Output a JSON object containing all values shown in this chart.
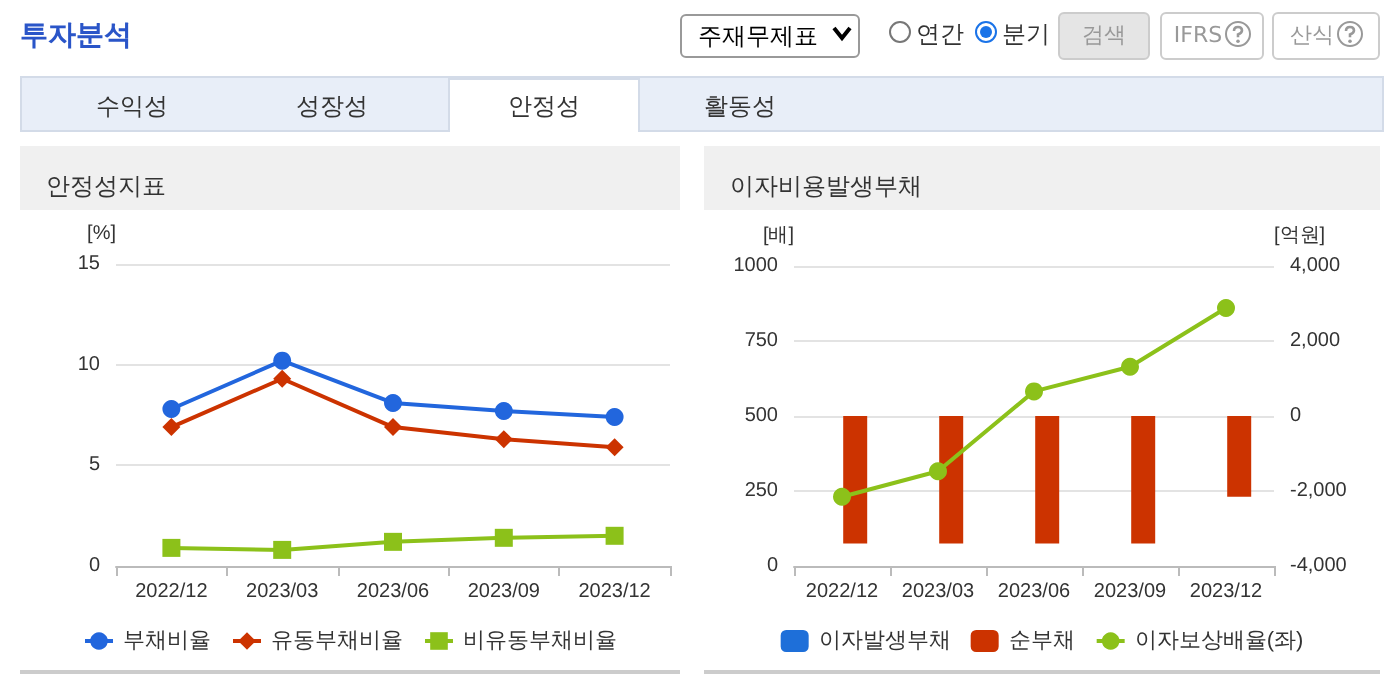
{
  "chart_data": [
    {
      "type": "line",
      "title": "안정성지표",
      "ylabel": "[%]",
      "categories": [
        "2022/12",
        "2023/03",
        "2023/06",
        "2023/09",
        "2023/12"
      ],
      "series": [
        {
          "name": "부채비율",
          "color": "#2266dd",
          "marker": "circle",
          "values": [
            7.8,
            10.2,
            8.1,
            7.7,
            7.4
          ]
        },
        {
          "name": "유동부채비율",
          "color": "#cc3300",
          "marker": "diamond",
          "values": [
            6.9,
            9.3,
            6.9,
            6.3,
            5.9
          ]
        },
        {
          "name": "비유동부채비율",
          "color": "#8cc11a",
          "marker": "square",
          "values": [
            0.9,
            0.8,
            1.2,
            1.4,
            1.5
          ]
        }
      ],
      "ylim": [
        0,
        15
      ],
      "yticks": [
        0,
        5,
        10,
        15
      ],
      "grid": "y",
      "legend": "bottom",
      "annotations": [
        "투자분석",
        "주재무제표",
        "연간",
        "분기",
        "검색",
        "IFRS",
        "산식",
        "수익성",
        "성장성",
        "안정성",
        "활동성"
      ]
    },
    {
      "type": "bar",
      "title": "이자비용발생부채",
      "ylabel": "[배]",
      "y2label": "[억원]",
      "categories": [
        "2022/12",
        "2023/03",
        "2023/06",
        "2023/09",
        "2023/12"
      ],
      "series": [
        {
          "name": "이자발생부채",
          "color": "#1e6fd9",
          "axis": "y2",
          "values": [
            null,
            null,
            null,
            null,
            null
          ]
        },
        {
          "name": "순부채",
          "color": "#cc3300",
          "axis": "y2",
          "values": [
            -3400,
            -3400,
            -3400,
            -3400,
            -2150
          ]
        },
        {
          "name": "이자보상배율(좌)",
          "type": "line",
          "color": "#8cc11a",
          "marker": "circle",
          "values": [
            231,
            316,
            582,
            664,
            860
          ]
        }
      ],
      "ylim": [
        0,
        1000
      ],
      "yticks": [
        0,
        250,
        500,
        750,
        1000
      ],
      "y2lim": [
        -4000,
        4000
      ],
      "y2ticks": [
        {
          "value": -4000,
          "label": "-4,000"
        },
        {
          "value": -2000,
          "label": "-2,000"
        },
        0,
        {
          "value": 2000,
          "label": "2,000"
        },
        {
          "value": 4000,
          "label": "4,000"
        }
      ],
      "grid": "y",
      "legend": "bottom"
    }
  ]
}
